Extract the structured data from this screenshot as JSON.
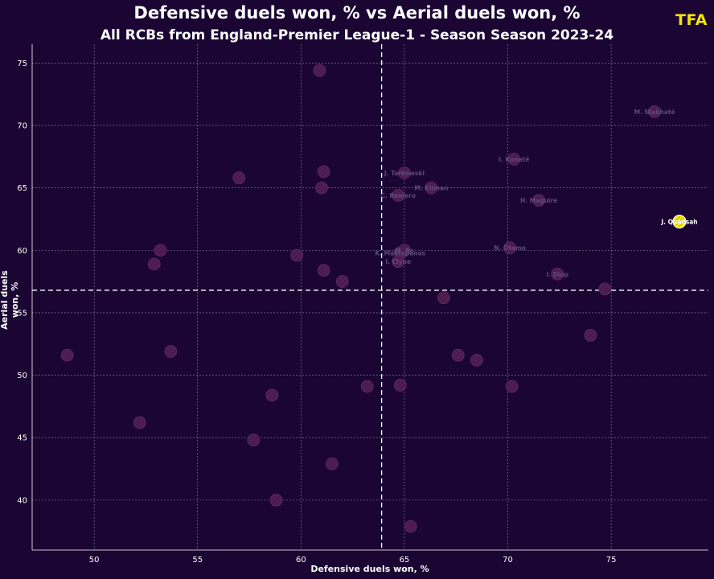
{
  "header": {
    "title": "Defensive duels won, % vs Aerial duels won, %",
    "subtitle": "All RCBs from England-Premier League-1 - Season Season 2023-24",
    "logo": "TFA"
  },
  "colors": {
    "background": "#1a0533",
    "point": "#4a1a4e",
    "point_stroke": "#5e2a60",
    "highlight": "#f2e600",
    "grid": "#8e86a0",
    "reference_line": "#ffffff",
    "logo": "#f2e600"
  },
  "chart_data": {
    "type": "scatter",
    "title": "Defensive duels won, % vs Aerial duels won, %",
    "subtitle": "All RCBs from England-Premier League-1 - Season Season 2023-24",
    "xlabel": "Defensive duels won, %",
    "ylabel": "Aerial duels won, %",
    "xlim": [
      47,
      79.7
    ],
    "ylim": [
      36,
      76.5
    ],
    "xticks": [
      50,
      55,
      60,
      65,
      70,
      75
    ],
    "yticks": [
      40,
      45,
      50,
      55,
      60,
      65,
      70,
      75
    ],
    "grid": true,
    "reference_lines": {
      "x": 63.9,
      "y": 56.8
    },
    "points": [
      {
        "x": 48.7,
        "y": 51.6,
        "label": ""
      },
      {
        "x": 52.2,
        "y": 46.2,
        "label": ""
      },
      {
        "x": 52.9,
        "y": 58.9,
        "label": ""
      },
      {
        "x": 53.2,
        "y": 60.0,
        "label": ""
      },
      {
        "x": 53.7,
        "y": 51.9,
        "label": ""
      },
      {
        "x": 57.0,
        "y": 65.8,
        "label": ""
      },
      {
        "x": 57.7,
        "y": 44.8,
        "label": ""
      },
      {
        "x": 58.6,
        "y": 48.4,
        "label": ""
      },
      {
        "x": 58.8,
        "y": 40.0,
        "label": ""
      },
      {
        "x": 59.8,
        "y": 59.6,
        "label": ""
      },
      {
        "x": 60.9,
        "y": 74.4,
        "label": ""
      },
      {
        "x": 61.0,
        "y": 65.0,
        "label": ""
      },
      {
        "x": 61.1,
        "y": 58.4,
        "label": ""
      },
      {
        "x": 61.1,
        "y": 66.3,
        "label": ""
      },
      {
        "x": 61.5,
        "y": 42.9,
        "label": ""
      },
      {
        "x": 62.0,
        "y": 57.5,
        "label": ""
      },
      {
        "x": 63.2,
        "y": 49.1,
        "label": ""
      },
      {
        "x": 64.8,
        "y": 49.2,
        "label": ""
      },
      {
        "x": 64.7,
        "y": 64.4,
        "label": "C. Romero"
      },
      {
        "x": 65.0,
        "y": 66.2,
        "label": "J. Tarkowski"
      },
      {
        "x": 64.8,
        "y": 59.8,
        "label": "K. Mavropanos"
      },
      {
        "x": 65.0,
        "y": 60.0,
        "label": "M. Bo"
      },
      {
        "x": 64.7,
        "y": 59.1,
        "label": "I. Clyne"
      },
      {
        "x": 65.3,
        "y": 37.9,
        "label": ""
      },
      {
        "x": 66.3,
        "y": 65.0,
        "label": "M. Kilman"
      },
      {
        "x": 66.9,
        "y": 56.2,
        "label": ""
      },
      {
        "x": 67.6,
        "y": 51.6,
        "label": ""
      },
      {
        "x": 68.5,
        "y": 51.2,
        "label": ""
      },
      {
        "x": 70.1,
        "y": 60.2,
        "label": "N. Otamo"
      },
      {
        "x": 70.2,
        "y": 49.1,
        "label": ""
      },
      {
        "x": 70.3,
        "y": 67.3,
        "label": "I. Konaté"
      },
      {
        "x": 71.5,
        "y": 64.0,
        "label": "H. Maguire"
      },
      {
        "x": 72.4,
        "y": 58.1,
        "label": "I. Diop"
      },
      {
        "x": 74.0,
        "y": 53.2,
        "label": ""
      },
      {
        "x": 74.7,
        "y": 56.9,
        "label": ""
      },
      {
        "x": 77.1,
        "y": 71.1,
        "label": "M. Niakhaté"
      },
      {
        "x": 78.3,
        "y": 62.3,
        "label": "J. Quansah",
        "highlight": true
      }
    ]
  }
}
